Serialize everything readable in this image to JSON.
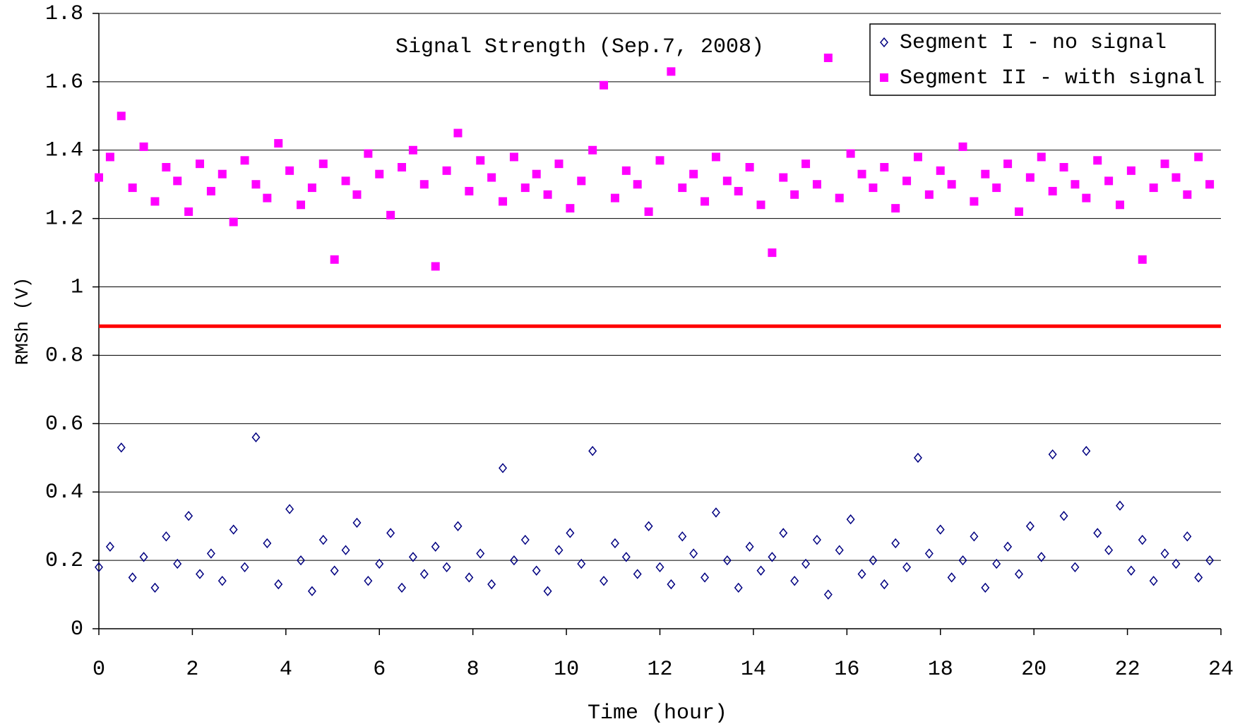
{
  "chart_data": {
    "type": "scatter",
    "title": "Signal Strength (Sep.7, 2008)",
    "x_label": "Time (hour)",
    "y_label": "RMSh (V)",
    "xlim": [
      0,
      24
    ],
    "xticks": [
      0,
      2,
      4,
      6,
      8,
      10,
      12,
      14,
      16,
      18,
      20,
      22,
      24
    ],
    "ylim": [
      0,
      1.8
    ],
    "yticks": [
      0,
      0.2,
      0.4,
      0.6,
      0.8,
      1,
      1.2,
      1.4,
      1.6,
      1.8
    ],
    "grid": true,
    "legend": "upper right",
    "reference_line": {
      "value": 0.885,
      "color": "#ff0000"
    },
    "x": [
      0,
      0.24,
      0.48,
      0.72,
      0.96,
      1.2,
      1.44,
      1.68,
      1.92,
      2.16,
      2.4,
      2.64,
      2.88,
      3.12,
      3.36,
      3.6,
      3.84,
      4.08,
      4.32,
      4.56,
      4.8,
      5.04,
      5.28,
      5.52,
      5.76,
      6,
      6.24,
      6.48,
      6.72,
      6.96,
      7.2,
      7.44,
      7.68,
      7.92,
      8.16,
      8.4,
      8.64,
      8.88,
      9.12,
      9.36,
      9.6,
      9.84,
      10.08,
      10.32,
      10.56,
      10.8,
      11.04,
      11.28,
      11.52,
      11.76,
      12,
      12.24,
      12.48,
      12.72,
      12.96,
      13.2,
      13.44,
      13.68,
      13.92,
      14.16,
      14.4,
      14.64,
      14.88,
      15.12,
      15.36,
      15.6,
      15.84,
      16.08,
      16.32,
      16.56,
      16.8,
      17.04,
      17.28,
      17.52,
      17.76,
      18,
      18.24,
      18.48,
      18.72,
      18.96,
      19.2,
      19.44,
      19.68,
      19.92,
      20.16,
      20.4,
      20.64,
      20.88,
      21.12,
      21.36,
      21.6,
      21.84,
      22.08,
      22.32,
      22.56,
      22.8,
      23.04,
      23.28,
      23.52,
      23.76
    ],
    "series": [
      {
        "name": "Segment I - no signal",
        "color": "#000080",
        "marker": "diamond-open",
        "values": [
          0.18,
          0.24,
          0.53,
          0.15,
          0.21,
          0.12,
          0.27,
          0.19,
          0.33,
          0.16,
          0.22,
          0.14,
          0.29,
          0.18,
          0.56,
          0.25,
          0.13,
          0.35,
          0.2,
          0.11,
          0.26,
          0.17,
          0.23,
          0.31,
          0.14,
          0.19,
          0.28,
          0.12,
          0.21,
          0.16,
          0.24,
          0.18,
          0.3,
          0.15,
          0.22,
          0.13,
          0.47,
          0.2,
          0.26,
          0.17,
          0.11,
          0.23,
          0.28,
          0.19,
          0.52,
          0.14,
          0.25,
          0.21,
          0.16,
          0.3,
          0.18,
          0.13,
          0.27,
          0.22,
          0.15,
          0.34,
          0.2,
          0.12,
          0.24,
          0.17,
          0.21,
          0.28,
          0.14,
          0.19,
          0.26,
          0.1,
          0.23,
          0.32,
          0.16,
          0.2,
          0.13,
          0.25,
          0.18,
          0.5,
          0.22,
          0.29,
          0.15,
          0.2,
          0.27,
          0.12,
          0.19,
          0.24,
          0.16,
          0.3,
          0.21,
          0.51,
          0.33,
          0.18,
          0.52,
          0.28,
          0.23,
          0.36,
          0.17,
          0.26,
          0.14,
          0.22,
          0.19,
          0.27,
          0.15,
          0.2
        ]
      },
      {
        "name": "Segment II - with signal",
        "color": "#ff00ff",
        "marker": "square",
        "values": [
          1.32,
          1.38,
          1.5,
          1.29,
          1.41,
          1.25,
          1.35,
          1.31,
          1.22,
          1.36,
          1.28,
          1.33,
          1.19,
          1.37,
          1.3,
          1.26,
          1.42,
          1.34,
          1.24,
          1.29,
          1.36,
          1.08,
          1.31,
          1.27,
          1.39,
          1.33,
          1.21,
          1.35,
          1.4,
          1.3,
          1.06,
          1.34,
          1.45,
          1.28,
          1.37,
          1.32,
          1.25,
          1.38,
          1.29,
          1.33,
          1.27,
          1.36,
          1.23,
          1.31,
          1.4,
          1.59,
          1.26,
          1.34,
          1.3,
          1.22,
          1.37,
          1.63,
          1.29,
          1.33,
          1.25,
          1.38,
          1.31,
          1.28,
          1.35,
          1.24,
          1.1,
          1.32,
          1.27,
          1.36,
          1.3,
          1.67,
          1.26,
          1.39,
          1.33,
          1.29,
          1.35,
          1.23,
          1.31,
          1.38,
          1.27,
          1.34,
          1.3,
          1.41,
          1.25,
          1.33,
          1.29,
          1.36,
          1.22,
          1.32,
          1.38,
          1.28,
          1.35,
          1.3,
          1.26,
          1.37,
          1.31,
          1.24,
          1.34,
          1.08,
          1.29,
          1.36,
          1.32,
          1.27,
          1.38,
          1.3
        ]
      }
    ]
  }
}
